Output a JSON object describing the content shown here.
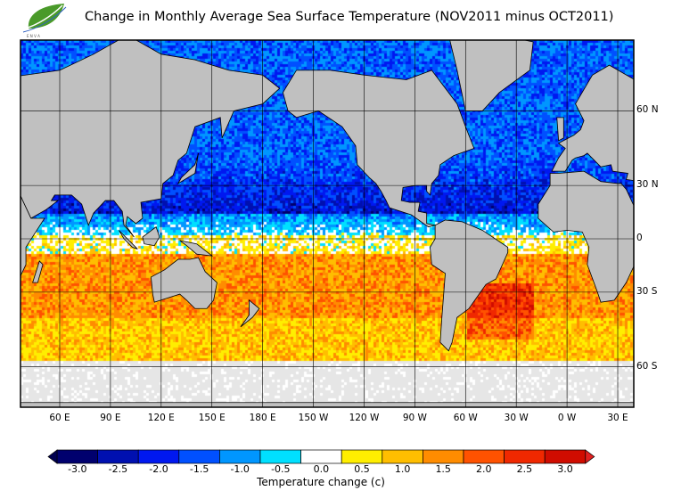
{
  "title": "Change in Monthly Average Sea Surface Temperature (NOV2011 minus OCT2011)",
  "logo": {
    "icon": "leaf-wave-logo",
    "text": "ENVA FAIS",
    "color": "#4a9a2a"
  },
  "map": {
    "projection": "mercator",
    "lon_range": [
      37,
      400
    ],
    "lat_range": [
      -70,
      75
    ],
    "grid": true,
    "land_color": "#c0c0c0",
    "sea_ice_color": "#e6e6e6",
    "lon_labels": [
      "60 E",
      "90 E",
      "120 E",
      "150 E",
      "180 E",
      "150 W",
      "120 W",
      "90 W",
      "60 W",
      "30 W",
      "0 W",
      "30 E"
    ],
    "lat_labels": [
      "60 N",
      "30 N",
      "0",
      "30 S",
      "60 S"
    ]
  },
  "colorbar": {
    "title": "Temperature change  (c)",
    "ticks": [
      "-3.0",
      "-2.5",
      "-2.0",
      "-1.5",
      "-1.0",
      "-0.5",
      "0.0",
      "0.5",
      "1.0",
      "1.5",
      "2.0",
      "2.5",
      "3.0"
    ],
    "colors": [
      "#00006e",
      "#0010b0",
      "#0018f0",
      "#0050ff",
      "#0096ff",
      "#00e0ff",
      "#ffffff",
      "#ffee00",
      "#ffbe00",
      "#ff8c00",
      "#ff5200",
      "#f02800",
      "#d00c00"
    ]
  }
}
